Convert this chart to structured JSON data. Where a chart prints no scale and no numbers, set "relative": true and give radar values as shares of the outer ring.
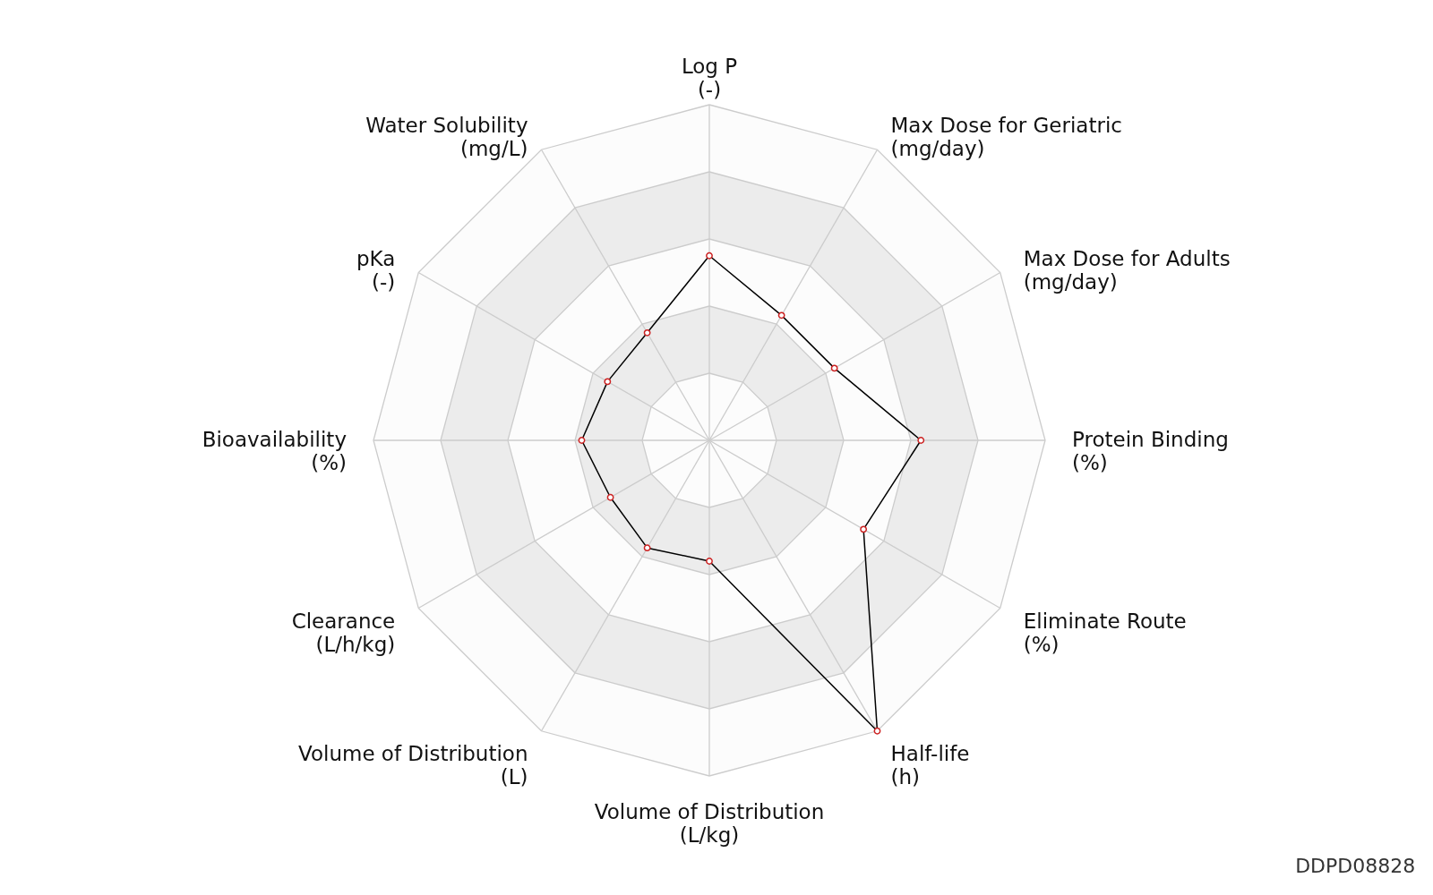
{
  "chart_data": {
    "type": "radar",
    "relative": true,
    "grid": true,
    "marker": "circle",
    "line_style": "solid",
    "categories": [
      "Log P\n(-)",
      "Max Dose for Geriatric\n(mg/day)",
      "Max Dose for Adults\n(mg/day)",
      "Protein Binding\n(%)",
      "Eliminate Route\n(%)",
      "Half-life\n(h)",
      "Volume of Distribution\n(L/kg)",
      "Volume of Distribution\n(L)",
      "Clearance\n(L/h/kg)",
      "Bioavailability\n(%)",
      "pKa\n(-)",
      "Water Solubility\n(mg/L)"
    ],
    "series": [
      {
        "color": "#000000",
        "values": [
          0.55,
          0.43,
          0.43,
          0.63,
          0.53,
          1.0,
          0.36,
          0.37,
          0.34,
          0.38,
          0.35,
          0.37
        ]
      }
    ],
    "annotations": [
      "DDPD08828"
    ]
  }
}
